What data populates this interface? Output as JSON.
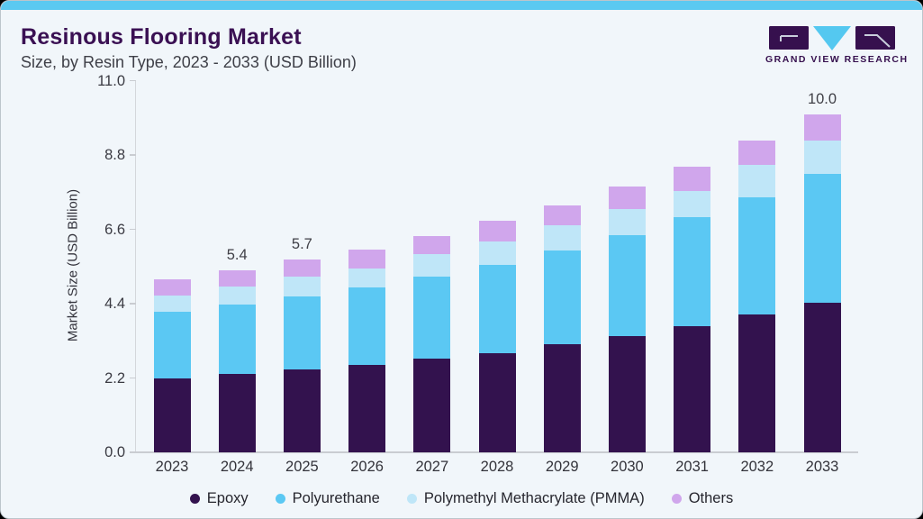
{
  "header": {
    "title": "Resinous Flooring Market",
    "subtitle": "Size, by Resin Type, 2023 - 2033 (USD Billion)",
    "logo_text": "GRAND VIEW RESEARCH"
  },
  "colors": {
    "accent_bar": "#5BC9F1",
    "title_purple": "#3A1053",
    "background": "#F1F6FA"
  },
  "chart_data": {
    "type": "bar",
    "stacked": true,
    "title": "Resinous Flooring Market Size, by Resin Type, 2023 - 2033 (USD Billion)",
    "xlabel": "",
    "ylabel": "Market Size (USD Billion)",
    "ylim": [
      0,
      11
    ],
    "y_ticks": [
      "0.0",
      "2.2",
      "4.4",
      "6.6",
      "8.8",
      "11.0"
    ],
    "grid": false,
    "legend_position": "bottom",
    "categories": [
      "2023",
      "2024",
      "2025",
      "2026",
      "2027",
      "2028",
      "2029",
      "2030",
      "2031",
      "2032",
      "2033"
    ],
    "series": [
      {
        "name": "Epoxy",
        "color": "#33124E",
        "values": [
          2.2,
          2.32,
          2.45,
          2.6,
          2.78,
          2.94,
          3.2,
          3.45,
          3.73,
          4.07,
          4.44
        ]
      },
      {
        "name": "Polyurethane",
        "color": "#5BC8F3",
        "values": [
          1.95,
          2.06,
          2.17,
          2.27,
          2.43,
          2.62,
          2.77,
          2.98,
          3.23,
          3.49,
          3.79
        ]
      },
      {
        "name": "Polymethyl Methacrylate (PMMA)",
        "color": "#BFE6F8",
        "values": [
          0.5,
          0.53,
          0.59,
          0.58,
          0.66,
          0.69,
          0.75,
          0.78,
          0.78,
          0.94,
          1.01
        ]
      },
      {
        "name": "Others",
        "color": "#D0A6EC",
        "values": [
          0.47,
          0.49,
          0.49,
          0.54,
          0.54,
          0.6,
          0.59,
          0.66,
          0.72,
          0.73,
          0.76
        ]
      }
    ],
    "totals": [
      5.12,
      5.4,
      5.7,
      5.99,
      6.41,
      6.85,
      7.31,
      7.87,
      8.46,
      9.23,
      10.0
    ],
    "bar_labels": [
      {
        "category": "2024",
        "label": "5.4"
      },
      {
        "category": "2025",
        "label": "5.7"
      },
      {
        "category": "2033",
        "label": "10.0"
      }
    ]
  }
}
